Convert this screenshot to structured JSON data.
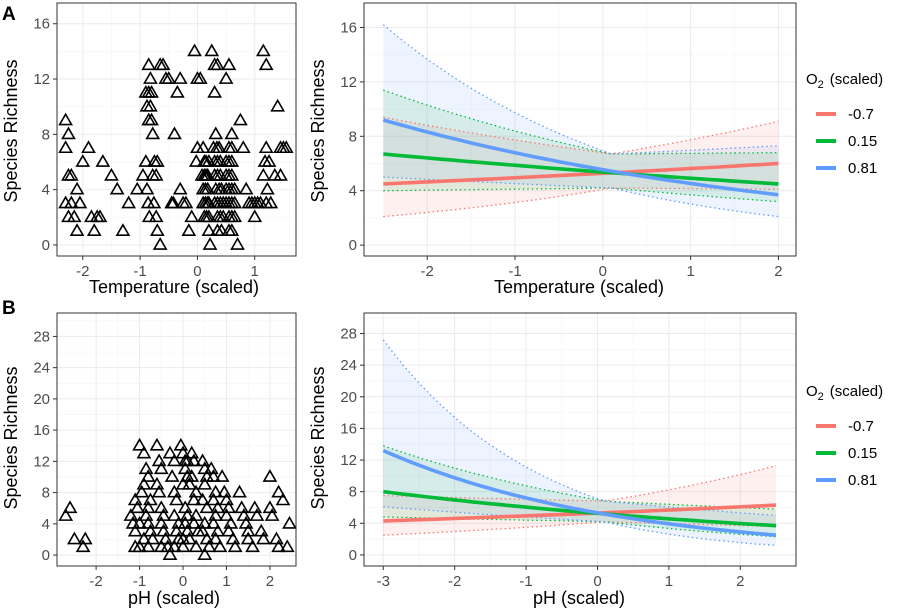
{
  "tags": [
    "A",
    "B"
  ],
  "legend": {
    "title_main": "O",
    "title_sub": "2",
    "title_rest": "(scaled)",
    "entries": [
      {
        "label": "-0.7",
        "color": "#F8766D"
      },
      {
        "label": "0.15",
        "color": "#00BA38"
      },
      {
        "label": "0.81",
        "color": "#619CFF"
      }
    ]
  },
  "chart_data": [
    {
      "id": "A-scatter",
      "type": "scatter",
      "marker": "triangle-open",
      "xlabel": "Temperature (scaled)",
      "ylabel": "Species Richness",
      "xlim": [
        -2.45,
        1.72
      ],
      "ylim": [
        -0.8,
        17.5
      ],
      "xticks": [
        -2,
        -1,
        0,
        1
      ],
      "yticks": [
        0,
        4,
        8,
        12,
        16
      ],
      "points": [
        [
          -2.3,
          9
        ],
        [
          -2.25,
          8
        ],
        [
          -2.3,
          7
        ],
        [
          -2.25,
          5
        ],
        [
          -2.2,
          5
        ],
        [
          -2.3,
          3
        ],
        [
          -2.2,
          3
        ],
        [
          -2.25,
          2
        ],
        [
          -2.15,
          2
        ],
        [
          -2.1,
          4
        ],
        [
          -2.05,
          3
        ],
        [
          -2.1,
          1
        ],
        [
          -2.0,
          6
        ],
        [
          -1.9,
          7
        ],
        [
          -1.85,
          2
        ],
        [
          -1.8,
          1
        ],
        [
          -1.75,
          2
        ],
        [
          -1.7,
          2
        ],
        [
          -1.65,
          6
        ],
        [
          -1.5,
          5
        ],
        [
          -1.4,
          4
        ],
        [
          -1.3,
          1
        ],
        [
          -1.2,
          3
        ],
        [
          -1.05,
          4
        ],
        [
          -0.95,
          5
        ],
        [
          -0.9,
          6
        ],
        [
          -0.88,
          4
        ],
        [
          -0.86,
          3
        ],
        [
          -0.84,
          2
        ],
        [
          -0.85,
          13
        ],
        [
          -0.9,
          11
        ],
        [
          -0.85,
          11
        ],
        [
          -0.8,
          11
        ],
        [
          -0.88,
          10
        ],
        [
          -0.82,
          10
        ],
        [
          -0.85,
          9
        ],
        [
          -0.8,
          9
        ],
        [
          -0.78,
          8
        ],
        [
          -0.82,
          12
        ],
        [
          -0.75,
          6
        ],
        [
          -0.7,
          6
        ],
        [
          -0.78,
          5
        ],
        [
          -0.72,
          5
        ],
        [
          -0.76,
          3
        ],
        [
          -0.72,
          2
        ],
        [
          -0.7,
          1
        ],
        [
          -0.65,
          0
        ],
        [
          -0.65,
          13
        ],
        [
          -0.6,
          13
        ],
        [
          -0.55,
          12
        ],
        [
          -0.5,
          12
        ],
        [
          -0.45,
          3
        ],
        [
          -0.42,
          3
        ],
        [
          -0.35,
          11
        ],
        [
          -0.3,
          12
        ],
        [
          -0.4,
          8
        ],
        [
          -0.3,
          4
        ],
        [
          -0.25,
          3
        ],
        [
          -0.2,
          3
        ],
        [
          -0.15,
          1
        ],
        [
          -0.1,
          2
        ],
        [
          -0.05,
          14
        ],
        [
          0.0,
          12
        ],
        [
          0.05,
          12
        ],
        [
          0.0,
          7
        ],
        [
          -0.02,
          6
        ],
        [
          0.1,
          7
        ],
        [
          0.12,
          6
        ],
        [
          0.08,
          5
        ],
        [
          0.12,
          5
        ],
        [
          0.15,
          5
        ],
        [
          0.18,
          5
        ],
        [
          0.1,
          4
        ],
        [
          0.14,
          4
        ],
        [
          0.18,
          4
        ],
        [
          0.1,
          3
        ],
        [
          0.14,
          3
        ],
        [
          0.18,
          3
        ],
        [
          0.2,
          3
        ],
        [
          0.12,
          2
        ],
        [
          0.16,
          2
        ],
        [
          0.2,
          2
        ],
        [
          0.2,
          1
        ],
        [
          0.22,
          0
        ],
        [
          0.15,
          6
        ],
        [
          0.2,
          6
        ],
        [
          0.25,
          14
        ],
        [
          0.3,
          13
        ],
        [
          0.35,
          13
        ],
        [
          0.3,
          11
        ],
        [
          0.32,
          8
        ],
        [
          0.28,
          7
        ],
        [
          0.34,
          7
        ],
        [
          0.38,
          7
        ],
        [
          0.3,
          6
        ],
        [
          0.35,
          6
        ],
        [
          0.4,
          6
        ],
        [
          0.3,
          5
        ],
        [
          0.35,
          5
        ],
        [
          0.4,
          5
        ],
        [
          0.32,
          4
        ],
        [
          0.38,
          4
        ],
        [
          0.42,
          4
        ],
        [
          0.3,
          3
        ],
        [
          0.35,
          3
        ],
        [
          0.4,
          3
        ],
        [
          0.45,
          3
        ],
        [
          0.35,
          2
        ],
        [
          0.4,
          2
        ],
        [
          0.45,
          2
        ],
        [
          0.35,
          1
        ],
        [
          0.42,
          1
        ],
        [
          0.5,
          12
        ],
        [
          0.55,
          13
        ],
        [
          0.6,
          8
        ],
        [
          0.55,
          7
        ],
        [
          0.6,
          7
        ],
        [
          0.5,
          6
        ],
        [
          0.55,
          6
        ],
        [
          0.6,
          6
        ],
        [
          0.5,
          5
        ],
        [
          0.55,
          5
        ],
        [
          0.6,
          5
        ],
        [
          0.5,
          4
        ],
        [
          0.55,
          4
        ],
        [
          0.6,
          4
        ],
        [
          0.65,
          4
        ],
        [
          0.5,
          3
        ],
        [
          0.55,
          3
        ],
        [
          0.6,
          3
        ],
        [
          0.65,
          3
        ],
        [
          0.55,
          2
        ],
        [
          0.6,
          2
        ],
        [
          0.65,
          2
        ],
        [
          0.55,
          1
        ],
        [
          0.6,
          1
        ],
        [
          0.7,
          0
        ],
        [
          0.75,
          9
        ],
        [
          0.8,
          7
        ],
        [
          0.85,
          4
        ],
        [
          0.9,
          3
        ],
        [
          0.95,
          3
        ],
        [
          1.0,
          3
        ],
        [
          1.05,
          3
        ],
        [
          1.1,
          3
        ],
        [
          1.0,
          2
        ],
        [
          1.15,
          14
        ],
        [
          1.2,
          13
        ],
        [
          1.2,
          7
        ],
        [
          1.18,
          6
        ],
        [
          1.25,
          6
        ],
        [
          1.15,
          5
        ],
        [
          1.22,
          4
        ],
        [
          1.2,
          3
        ],
        [
          1.28,
          3
        ],
        [
          1.35,
          5
        ],
        [
          1.4,
          10
        ],
        [
          1.45,
          7
        ],
        [
          1.45,
          5
        ],
        [
          1.5,
          7
        ],
        [
          1.55,
          7
        ]
      ]
    },
    {
      "id": "A-lines",
      "type": "line",
      "xlabel": "Temperature (scaled)",
      "ylabel": "Species Richness",
      "xlim": [
        -2.72,
        2.2
      ],
      "ylim": [
        -0.8,
        17.8
      ],
      "xticks": [
        -2,
        -1,
        0,
        1,
        2
      ],
      "yticks": [
        0,
        4,
        8,
        12,
        16
      ],
      "series": [
        {
          "name": "-0.7",
          "color": "#F8766D",
          "x": [
            -2.5,
            2.0
          ],
          "y": [
            4.5,
            6.0
          ],
          "lower": [
            2.1,
            4.1
          ],
          "upper": [
            9.4,
            9.1
          ]
        },
        {
          "name": "0.15",
          "color": "#00BA38",
          "x": [
            -2.5,
            2.0
          ],
          "y": [
            6.7,
            4.5
          ],
          "lower": [
            4.0,
            3.2
          ],
          "upper": [
            11.4,
            6.8
          ]
        },
        {
          "name": "0.81",
          "color": "#619CFF",
          "x": [
            -2.5,
            2.0
          ],
          "y": [
            9.2,
            3.7
          ],
          "lower": [
            5.0,
            2.1
          ],
          "upper": [
            16.2,
            7.3
          ]
        }
      ],
      "pivot": {
        "x": 0.1,
        "y": 5.3,
        "ci": [
          4.2,
          6.7
        ]
      }
    },
    {
      "id": "B-scatter",
      "type": "scatter",
      "marker": "triangle-open",
      "xlabel": "pH (scaled)",
      "ylabel": "Species Richness",
      "xlim": [
        -2.9,
        2.6
      ],
      "ylim": [
        -1.4,
        31
      ],
      "xticks": [
        -2,
        -1,
        0,
        1,
        2
      ],
      "yticks": [
        0,
        4,
        8,
        12,
        16,
        20,
        24,
        28
      ],
      "points": [
        [
          -2.7,
          5
        ],
        [
          -2.6,
          6
        ],
        [
          -2.5,
          2
        ],
        [
          -2.3,
          1
        ],
        [
          -2.25,
          2
        ],
        [
          -1.2,
          5
        ],
        [
          -1.15,
          4
        ],
        [
          -1.1,
          3
        ],
        [
          -1.05,
          6
        ],
        [
          -1.1,
          7
        ],
        [
          -1.0,
          4
        ],
        [
          -0.95,
          8
        ],
        [
          -1.0,
          1
        ],
        [
          -0.9,
          2
        ],
        [
          -1.1,
          1
        ],
        [
          -1.0,
          14
        ],
        [
          -0.9,
          13
        ],
        [
          -0.85,
          11
        ],
        [
          -0.8,
          10
        ],
        [
          -0.9,
          9
        ],
        [
          -0.75,
          7
        ],
        [
          -0.8,
          6
        ],
        [
          -0.85,
          5
        ],
        [
          -0.8,
          4
        ],
        [
          -0.75,
          3
        ],
        [
          -0.7,
          2
        ],
        [
          -0.8,
          1
        ],
        [
          -0.6,
          14
        ],
        [
          -0.55,
          12
        ],
        [
          -0.5,
          11
        ],
        [
          -0.6,
          9
        ],
        [
          -0.55,
          8
        ],
        [
          -0.5,
          6
        ],
        [
          -0.45,
          5
        ],
        [
          -0.5,
          4
        ],
        [
          -0.45,
          3
        ],
        [
          -0.4,
          2
        ],
        [
          -0.5,
          1
        ],
        [
          -0.35,
          1
        ],
        [
          -0.3,
          0
        ],
        [
          -0.3,
          13
        ],
        [
          -0.2,
          12
        ],
        [
          -0.25,
          10
        ],
        [
          -0.2,
          8
        ],
        [
          -0.15,
          7
        ],
        [
          -0.2,
          5
        ],
        [
          -0.1,
          4
        ],
        [
          -0.15,
          3
        ],
        [
          -0.1,
          2
        ],
        [
          -0.2,
          1
        ],
        [
          0.0,
          1
        ],
        [
          -0.05,
          14
        ],
        [
          0.0,
          13
        ],
        [
          0.05,
          12
        ],
        [
          0.1,
          12
        ],
        [
          0.05,
          11
        ],
        [
          0.1,
          10
        ],
        [
          0.15,
          9
        ],
        [
          0.0,
          9
        ],
        [
          0.05,
          6
        ],
        [
          0.1,
          5
        ],
        [
          0.05,
          4
        ],
        [
          0.1,
          3
        ],
        [
          0.15,
          2
        ],
        [
          0.0,
          2
        ],
        [
          0.2,
          13
        ],
        [
          0.25,
          12
        ],
        [
          0.2,
          10
        ],
        [
          0.3,
          8
        ],
        [
          0.25,
          7
        ],
        [
          0.3,
          5
        ],
        [
          0.25,
          4
        ],
        [
          0.35,
          3
        ],
        [
          0.3,
          1
        ],
        [
          0.45,
          12
        ],
        [
          0.5,
          11
        ],
        [
          0.55,
          10
        ],
        [
          0.5,
          9
        ],
        [
          0.45,
          7
        ],
        [
          0.55,
          6
        ],
        [
          0.5,
          4
        ],
        [
          0.45,
          3
        ],
        [
          0.55,
          2
        ],
        [
          0.6,
          1
        ],
        [
          0.5,
          0
        ],
        [
          0.65,
          11
        ],
        [
          0.7,
          10
        ],
        [
          0.75,
          8
        ],
        [
          0.7,
          7
        ],
        [
          0.8,
          6
        ],
        [
          0.75,
          5
        ],
        [
          0.7,
          4
        ],
        [
          0.8,
          3
        ],
        [
          0.75,
          2
        ],
        [
          0.85,
          1
        ],
        [
          0.9,
          10
        ],
        [
          0.95,
          8
        ],
        [
          1.0,
          7
        ],
        [
          1.05,
          6
        ],
        [
          1.0,
          5
        ],
        [
          1.1,
          4
        ],
        [
          1.05,
          3
        ],
        [
          1.15,
          2
        ],
        [
          1.2,
          1
        ],
        [
          1.3,
          8
        ],
        [
          1.35,
          6
        ],
        [
          1.4,
          5
        ],
        [
          1.45,
          4
        ],
        [
          1.5,
          3
        ],
        [
          1.5,
          2
        ],
        [
          1.6,
          1
        ],
        [
          1.65,
          6
        ],
        [
          1.7,
          5
        ],
        [
          1.8,
          3
        ],
        [
          1.85,
          2
        ],
        [
          2.0,
          10
        ],
        [
          2.0,
          6
        ],
        [
          2.05,
          5
        ],
        [
          2.15,
          2
        ],
        [
          2.2,
          1
        ],
        [
          2.2,
          8
        ],
        [
          2.3,
          7
        ],
        [
          2.45,
          4
        ],
        [
          2.4,
          1
        ]
      ]
    },
    {
      "id": "B-lines",
      "type": "line",
      "xlabel": "pH (scaled)",
      "ylabel": "Species Richness",
      "xlim": [
        -3.27,
        2.78
      ],
      "ylim": [
        -1.4,
        30.6
      ],
      "xticks": [
        -3,
        -2,
        -1,
        0,
        1,
        2
      ],
      "yticks": [
        0,
        4,
        8,
        12,
        16,
        20,
        24,
        28
      ],
      "series": [
        {
          "name": "-0.7",
          "color": "#F8766D",
          "x": [
            -3.0,
            2.5
          ],
          "y": [
            4.3,
            6.3
          ],
          "lower": [
            2.5,
            3.6
          ],
          "upper": [
            7.5,
            11.3
          ]
        },
        {
          "name": "0.15",
          "color": "#00BA38",
          "x": [
            -3.0,
            2.5
          ],
          "y": [
            8.0,
            3.7
          ],
          "lower": [
            4.8,
            2.3
          ],
          "upper": [
            13.8,
            5.8
          ]
        },
        {
          "name": "0.81",
          "color": "#619CFF",
          "x": [
            -3.0,
            2.5
          ],
          "y": [
            13.2,
            2.5
          ],
          "lower": [
            6.1,
            1.2
          ],
          "upper": [
            27.2,
            5.0
          ]
        }
      ],
      "pivot": {
        "x": 0.1,
        "y": 5.3,
        "ci": [
          4.2,
          6.8
        ]
      }
    }
  ]
}
